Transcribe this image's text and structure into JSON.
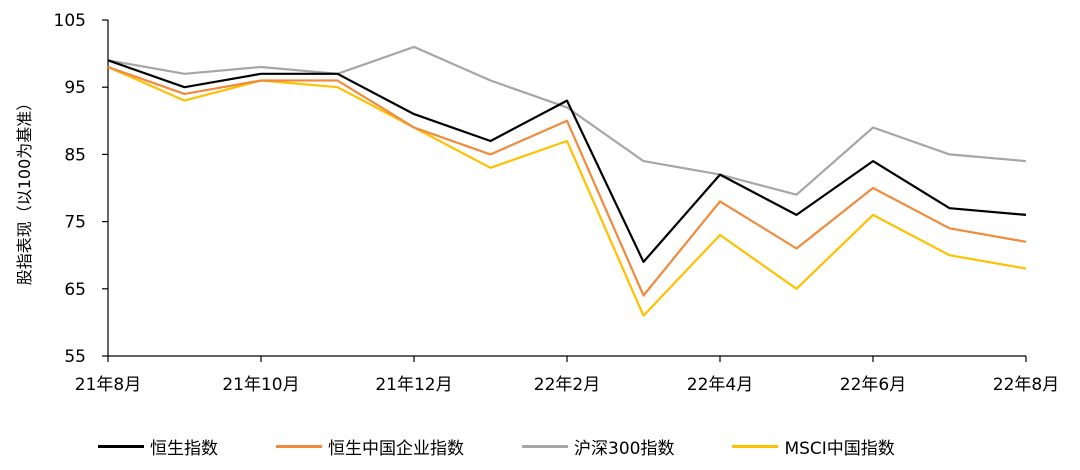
{
  "chart_data": {
    "type": "line",
    "ylabel": "股指表现（以100为基准）",
    "ylim": [
      55,
      105
    ],
    "yticks": [
      55,
      65,
      75,
      85,
      95,
      105
    ],
    "xticks": [
      "21年8月",
      "21年10月",
      "21年12月",
      "22年2月",
      "22年4月",
      "22年6月",
      "22年8月"
    ],
    "legend_position": "bottom",
    "series": [
      {
        "name": "恒生指数",
        "color": "#000000",
        "x": [
          "21年8月",
          "21年9月",
          "21年10月",
          "21年11月",
          "21年12月",
          "22年1月",
          "22年2月",
          "22年3月",
          "22年4月",
          "22年5月",
          "22年6月",
          "22年7月",
          "22年8月"
        ],
        "values": [
          99,
          95,
          97,
          97,
          91,
          87,
          93,
          69,
          82,
          76,
          84,
          77,
          76
        ]
      },
      {
        "name": "恒生中国企业指数",
        "color": "#F08A3C",
        "x": [
          "21年8月",
          "21年9月",
          "21年10月",
          "21年11月",
          "21年12月",
          "22年1月",
          "22年2月",
          "22年3月",
          "22年4月",
          "22年5月",
          "22年6月",
          "22年7月",
          "22年8月"
        ],
        "values": [
          98,
          94,
          96,
          96,
          89,
          85,
          90,
          64,
          78,
          71,
          80,
          74,
          72
        ]
      },
      {
        "name": "沪深300指数",
        "color": "#A6A6A6",
        "x": [
          "21年8月",
          "21年9月",
          "21年10月",
          "21年11月",
          "21年12月",
          "22年1月",
          "22年2月",
          "22年3月",
          "22年4月",
          "22年5月",
          "22年6月",
          "22年7月",
          "22年8月"
        ],
        "values": [
          99,
          97,
          98,
          97,
          101,
          96,
          92,
          84,
          82,
          79,
          89,
          85,
          84
        ]
      },
      {
        "name": "MSCI中国指数",
        "color": "#FFC000",
        "x": [
          "21年8月",
          "21年9月",
          "21年10月",
          "21年11月",
          "21年12月",
          "22年1月",
          "22年2月",
          "22年3月",
          "22年4月",
          "22年5月",
          "22年6月",
          "22年7月",
          "22年8月"
        ],
        "values": [
          98,
          93,
          96,
          95,
          89,
          83,
          87,
          61,
          73,
          65,
          76,
          70,
          68
        ]
      }
    ]
  }
}
